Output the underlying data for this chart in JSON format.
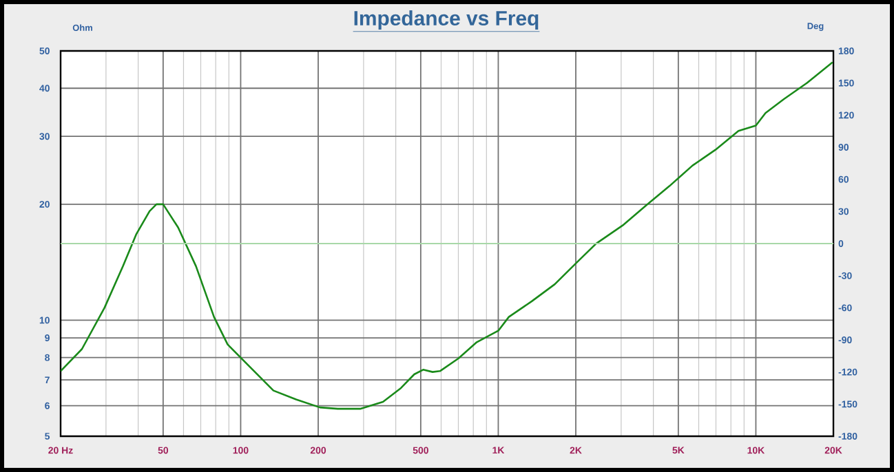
{
  "chart_data": {
    "type": "line",
    "title": "Impedance vs Freq",
    "ylabel": "Ohm",
    "y2label": "Deg",
    "log": "xy",
    "grid": true,
    "marker": "none",
    "line_style": "solid",
    "xlim": [
      20,
      20000
    ],
    "xticks": [
      {
        "value": 20,
        "label": "20  Hz"
      },
      50,
      100,
      200,
      500,
      {
        "value": 1000,
        "label": "1K"
      },
      {
        "value": 2000,
        "label": "2K"
      },
      {
        "value": 5000,
        "label": "5K"
      },
      {
        "value": 10000,
        "label": "10K"
      },
      {
        "value": 20000,
        "label": "20K"
      }
    ],
    "ylim": [
      5,
      50
    ],
    "yticks": [
      5,
      6,
      7,
      8,
      9,
      10,
      20,
      30,
      40,
      50
    ],
    "y2lim": [
      -180,
      180
    ],
    "y2ticks": [
      -180,
      -150,
      -120,
      -90,
      -60,
      -30,
      0,
      30,
      60,
      90,
      120,
      150,
      180
    ],
    "ref_lines": [
      {
        "axis": "y2",
        "value": 0,
        "color": "#a8d8a8"
      }
    ],
    "series": [
      {
        "color": "#1a8a1a",
        "x": [
          20,
          24.2,
          29.6,
          34.9,
          39.3,
          44.3,
          47.1,
          50,
          57.2,
          67.1,
          78.8,
          89,
          109,
          134,
          164,
          203,
          238,
          291,
          357,
          419,
          472,
          511,
          556,
          594,
          700,
          825,
          1000,
          1099,
          1349,
          1657,
          2034,
          2397,
          3066,
          3764,
          4621,
          5675,
          6970,
          8560,
          10000,
          10900,
          12850,
          15800,
          19850
        ],
        "values": [
          7.38,
          8.42,
          10.77,
          13.8,
          16.7,
          19.2,
          20,
          20,
          17.4,
          13.8,
          10.2,
          8.65,
          7.55,
          6.57,
          6.23,
          5.94,
          5.89,
          5.89,
          6.14,
          6.67,
          7.24,
          7.44,
          7.34,
          7.38,
          7.96,
          8.77,
          9.39,
          10.2,
          11.2,
          12.4,
          14.2,
          15.8,
          17.7,
          19.9,
          22.3,
          25.2,
          27.7,
          31.0,
          32.0,
          34.5,
          37.5,
          41.3,
          46.7
        ]
      }
    ]
  }
}
